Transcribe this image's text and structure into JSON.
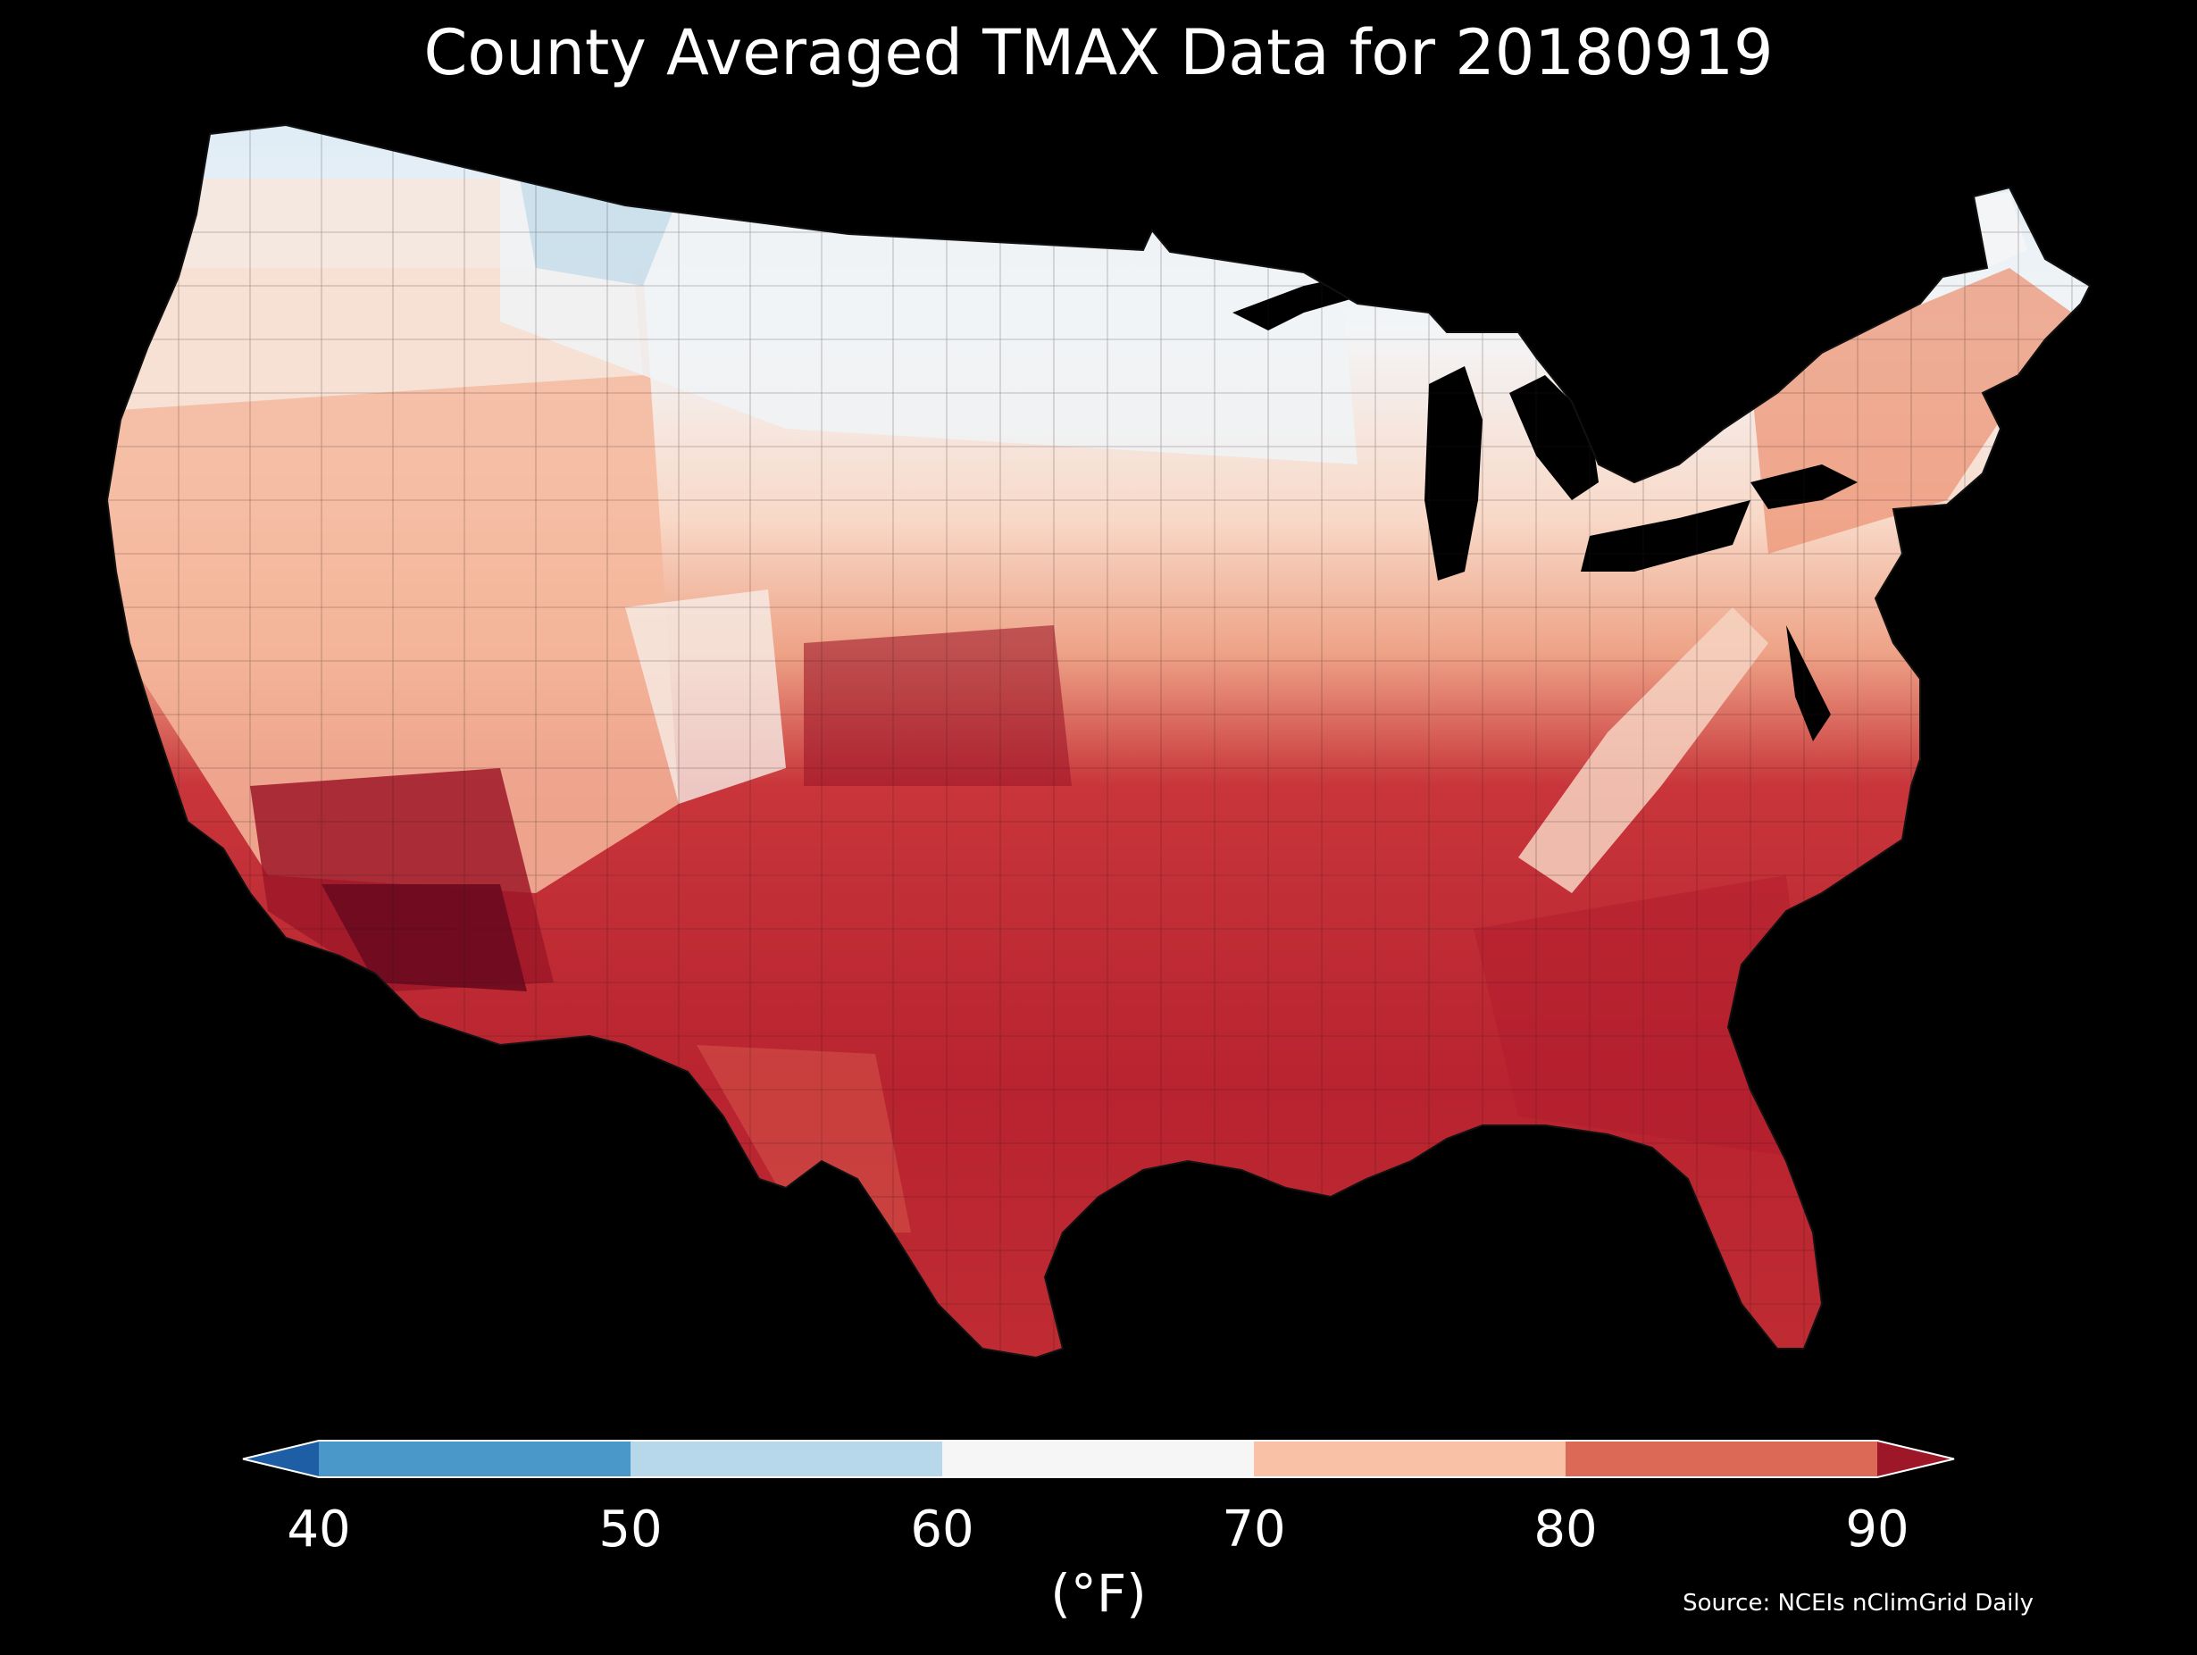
{
  "title": "County Averaged TMAX Data for 20180919",
  "source": "Source: NCEIs nClimGrid Daily",
  "colorbar": {
    "unit_label": "(°F)",
    "ticks": [
      "40",
      "50",
      "60",
      "70",
      "80",
      "90"
    ],
    "bins": [
      {
        "min": 40,
        "max": 50,
        "color": "#4a98c9"
      },
      {
        "min": 50,
        "max": 60,
        "color": "#b7d7ea"
      },
      {
        "min": 60,
        "max": 70,
        "color": "#f6f6f6"
      },
      {
        "min": 70,
        "max": 80,
        "color": "#f9c2a6"
      },
      {
        "min": 80,
        "max": 90,
        "color": "#dc6955"
      }
    ],
    "under_color": "#1e5ea4",
    "over_color": "#9e1728"
  },
  "map": {
    "background": "#000000",
    "water_color": "#000000",
    "border_color": "#222222"
  }
}
